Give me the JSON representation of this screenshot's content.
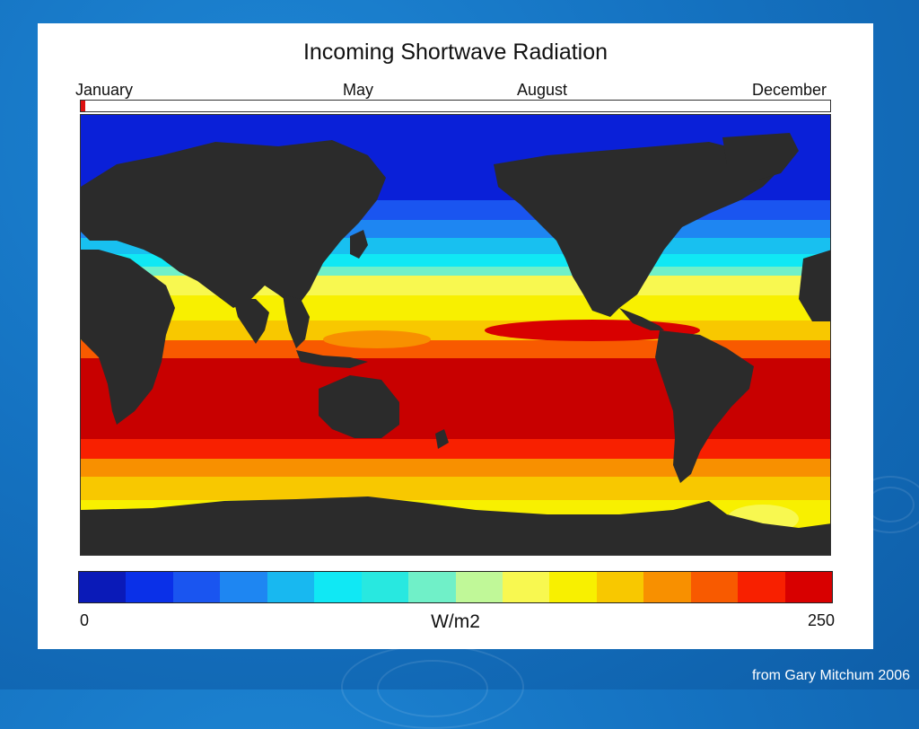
{
  "slide": {
    "credit": "from Gary Mitchum 2006",
    "background_color": "#1573c2"
  },
  "figure": {
    "title": "Incoming Shortwave Radiation",
    "months": {
      "january": "January",
      "may": "May",
      "august": "August",
      "december": "December"
    },
    "timeline_marker_color": "#d11111",
    "land_color": "#2b2b2b"
  },
  "colorbar": {
    "min_label": "0",
    "max_label": "250",
    "units": "W/m2",
    "min_value": 0,
    "max_value": 250,
    "colors": [
      "#0a1ab8",
      "#0a30e8",
      "#1a55f0",
      "#1e86f2",
      "#18b8f0",
      "#10e8f4",
      "#28e8e0",
      "#70f0c8",
      "#c0f898",
      "#f8f850",
      "#f8f000",
      "#f8c800",
      "#f89000",
      "#f85a00",
      "#f82000",
      "#d80000"
    ]
  },
  "chart_data": {
    "type": "heatmap",
    "title": "Incoming Shortwave Radiation",
    "units": "W/m2",
    "range": [
      0,
      250
    ],
    "current_month": "January",
    "month_ticks": [
      "January",
      "May",
      "August",
      "December"
    ]
  }
}
